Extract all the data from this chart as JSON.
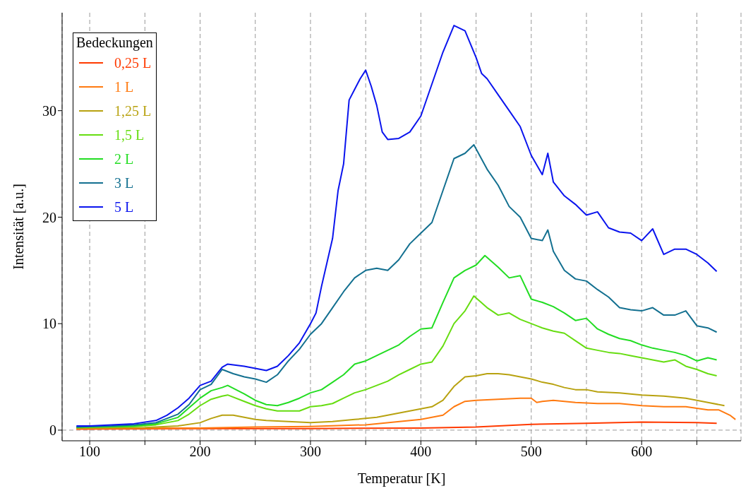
{
  "chart_data": {
    "type": "line",
    "xlabel": "Temperatur [K]",
    "ylabel": "Intensität  [a.u.]",
    "legend_title": "Bedeckungen",
    "legend": "top left",
    "grid": "x",
    "marker": "none",
    "line_style": "solid",
    "xlim": [
      75,
      690
    ],
    "ylim": [
      -1,
      39.2
    ],
    "xticks": [
      100,
      {
        "value": 150,
        "label": null
      },
      200,
      {
        "value": 250,
        "label": null
      },
      300,
      {
        "value": 350,
        "label": null
      },
      400,
      {
        "value": 450,
        "label": null
      },
      500,
      {
        "value": 550,
        "label": null
      },
      600,
      {
        "value": 650,
        "label": null
      }
    ],
    "yticks": [
      0,
      10,
      20,
      30
    ],
    "ref_lines": [
      {
        "axis": "y",
        "value": 0,
        "label": null,
        "color": "#999999",
        "line_style": "dashed"
      }
    ],
    "series": [
      {
        "name": "0,25 L",
        "color": "#ff3a00",
        "x": [
          88,
          200,
          300,
          400,
          450,
          500,
          550,
          600,
          650,
          668
        ],
        "values": [
          0.1,
          0.15,
          0.15,
          0.2,
          0.3,
          0.55,
          0.65,
          0.75,
          0.7,
          0.65
        ]
      },
      {
        "name": "1 L",
        "color": "#ff7a10",
        "x": [
          88,
          200,
          250,
          300,
          350,
          400,
          420,
          430,
          440,
          450,
          470,
          490,
          500,
          505,
          510,
          520,
          540,
          560,
          580,
          600,
          620,
          640,
          660,
          670,
          680,
          685
        ],
        "values": [
          0.15,
          0.2,
          0.3,
          0.35,
          0.5,
          1.0,
          1.4,
          2.2,
          2.7,
          2.8,
          2.9,
          3.0,
          3.0,
          2.6,
          2.7,
          2.8,
          2.6,
          2.5,
          2.5,
          2.3,
          2.2,
          2.2,
          1.9,
          1.9,
          1.4,
          1.0
        ]
      },
      {
        "name": "1,25 L",
        "color": "#b8a210",
        "x": [
          88,
          150,
          180,
          200,
          210,
          220,
          230,
          240,
          250,
          260,
          280,
          300,
          320,
          340,
          350,
          360,
          380,
          400,
          410,
          420,
          430,
          440,
          450,
          460,
          470,
          480,
          490,
          500,
          510,
          520,
          530,
          540,
          550,
          560,
          580,
          600,
          620,
          640,
          660,
          675
        ],
        "values": [
          0.2,
          0.25,
          0.4,
          0.7,
          1.1,
          1.4,
          1.4,
          1.2,
          1.0,
          0.9,
          0.8,
          0.7,
          0.8,
          1.0,
          1.1,
          1.2,
          1.6,
          2.0,
          2.2,
          2.8,
          4.1,
          5.0,
          5.1,
          5.3,
          5.3,
          5.2,
          5.0,
          4.8,
          4.5,
          4.3,
          4.0,
          3.8,
          3.8,
          3.6,
          3.5,
          3.3,
          3.2,
          3.0,
          2.6,
          2.3
        ]
      },
      {
        "name": "1,5 L",
        "color": "#66dd10",
        "x": [
          88,
          140,
          160,
          180,
          190,
          200,
          210,
          220,
          225,
          240,
          250,
          260,
          270,
          280,
          290,
          300,
          310,
          320,
          330,
          340,
          350,
          360,
          370,
          380,
          390,
          400,
          410,
          420,
          430,
          440,
          448,
          460,
          470,
          480,
          490,
          500,
          510,
          520,
          530,
          540,
          550,
          560,
          570,
          580,
          590,
          600,
          610,
          620,
          630,
          640,
          650,
          660,
          668
        ],
        "values": [
          0.25,
          0.35,
          0.5,
          0.9,
          1.5,
          2.3,
          2.9,
          3.2,
          3.3,
          2.7,
          2.3,
          2.0,
          1.8,
          1.8,
          1.8,
          2.2,
          2.3,
          2.5,
          3.0,
          3.5,
          3.8,
          4.2,
          4.6,
          5.2,
          5.7,
          6.2,
          6.4,
          7.9,
          10.0,
          11.2,
          12.6,
          11.5,
          10.8,
          11.0,
          10.4,
          10.0,
          9.6,
          9.3,
          9.1,
          8.4,
          7.7,
          7.5,
          7.3,
          7.2,
          7.0,
          6.8,
          6.6,
          6.4,
          6.6,
          6.0,
          5.7,
          5.3,
          5.1
        ]
      },
      {
        "name": "2 L",
        "color": "#22dd22",
        "x": [
          88,
          120,
          140,
          160,
          180,
          190,
          200,
          210,
          220,
          225,
          240,
          250,
          260,
          270,
          280,
          290,
          300,
          310,
          320,
          330,
          340,
          350,
          360,
          370,
          380,
          390,
          400,
          410,
          420,
          430,
          440,
          450,
          458,
          470,
          480,
          490,
          500,
          510,
          520,
          530,
          540,
          550,
          560,
          570,
          580,
          590,
          600,
          610,
          620,
          630,
          640,
          650,
          660,
          668
        ],
        "values": [
          0.3,
          0.35,
          0.4,
          0.6,
          1.2,
          2.1,
          3.0,
          3.7,
          4.0,
          4.2,
          3.4,
          2.8,
          2.4,
          2.3,
          2.6,
          3.0,
          3.5,
          3.8,
          4.5,
          5.2,
          6.2,
          6.5,
          7.0,
          7.5,
          8.0,
          8.8,
          9.5,
          9.6,
          12.0,
          14.3,
          15.0,
          15.5,
          16.4,
          15.3,
          14.3,
          14.5,
          12.3,
          12.0,
          11.6,
          11.0,
          10.3,
          10.5,
          9.5,
          9.0,
          8.6,
          8.4,
          8.0,
          7.7,
          7.5,
          7.3,
          7.0,
          6.5,
          6.8,
          6.6
        ]
      },
      {
        "name": "3 L",
        "color": "#137090",
        "x": [
          88,
          100,
          120,
          140,
          160,
          180,
          190,
          200,
          210,
          220,
          230,
          240,
          250,
          260,
          270,
          280,
          290,
          300,
          310,
          320,
          330,
          340,
          350,
          360,
          370,
          380,
          390,
          400,
          410,
          420,
          430,
          440,
          448,
          460,
          470,
          480,
          490,
          500,
          510,
          515,
          520,
          530,
          540,
          550,
          560,
          570,
          580,
          590,
          600,
          610,
          620,
          630,
          640,
          650,
          660,
          668
        ],
        "values": [
          0.3,
          0.35,
          0.4,
          0.5,
          0.7,
          1.5,
          2.4,
          3.8,
          4.3,
          5.7,
          5.3,
          5.0,
          4.8,
          4.5,
          5.2,
          6.5,
          7.6,
          9.0,
          10.0,
          11.5,
          13.0,
          14.3,
          15.0,
          15.2,
          15.0,
          16.0,
          17.5,
          18.5,
          19.5,
          22.5,
          25.5,
          26.0,
          26.8,
          24.5,
          23.0,
          21.0,
          20.0,
          18.0,
          17.8,
          18.8,
          16.8,
          15.0,
          14.2,
          14.0,
          13.2,
          12.5,
          11.5,
          11.3,
          11.2,
          11.5,
          10.8,
          10.8,
          11.2,
          9.8,
          9.6,
          9.2
        ]
      },
      {
        "name": "5 L",
        "color": "#0a14ee",
        "x": [
          88,
          100,
          120,
          140,
          160,
          170,
          180,
          190,
          200,
          210,
          220,
          225,
          240,
          250,
          260,
          270,
          280,
          290,
          300,
          305,
          310,
          320,
          325,
          330,
          335,
          340,
          345,
          350,
          355,
          360,
          365,
          370,
          380,
          390,
          400,
          410,
          420,
          430,
          440,
          450,
          455,
          460,
          470,
          480,
          490,
          500,
          510,
          515,
          520,
          530,
          540,
          550,
          560,
          570,
          580,
          590,
          600,
          610,
          620,
          630,
          640,
          650,
          660,
          668
        ],
        "values": [
          0.4,
          0.4,
          0.5,
          0.6,
          0.9,
          1.4,
          2.1,
          3.0,
          4.2,
          4.6,
          5.9,
          6.2,
          6.0,
          5.8,
          5.6,
          6.0,
          7.0,
          8.2,
          10.0,
          11.0,
          13.5,
          18.0,
          22.5,
          25.0,
          31.0,
          32.0,
          33.0,
          33.8,
          32.3,
          30.5,
          28.0,
          27.3,
          27.4,
          28.0,
          29.5,
          32.5,
          35.5,
          38.0,
          37.5,
          35.0,
          33.5,
          33.0,
          31.5,
          30.0,
          28.5,
          25.8,
          24.0,
          26.0,
          23.3,
          22.0,
          21.2,
          20.2,
          20.5,
          19.0,
          18.6,
          18.5,
          17.8,
          18.9,
          16.5,
          17.0,
          17.0,
          16.5,
          15.7,
          14.9
        ]
      }
    ]
  }
}
